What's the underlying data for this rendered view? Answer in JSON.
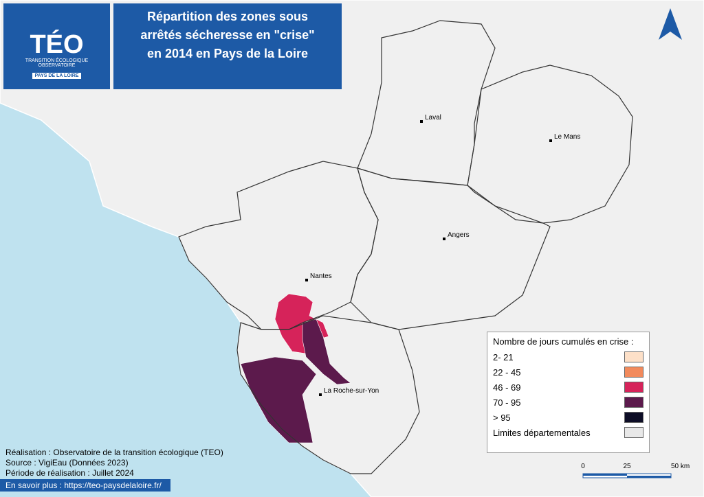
{
  "logo": {
    "name": "TÉO",
    "line1": "TRANSITION ÉCOLOGIQUE",
    "line2": "OBSERVATOIRE",
    "region": "PAYS DE LA LOIRE"
  },
  "title": "Répartition des zones sous arrêtés sécheresse en \"crise\" en 2014 en Pays de la Loire",
  "cities": [
    "Laval",
    "Le Mans",
    "Angers",
    "Nantes",
    "La Roche-sur-Yon"
  ],
  "legend": {
    "title": "Nombre de jours cumulés en crise :",
    "items": [
      {
        "label": "2- 21",
        "color": "#fde0c8"
      },
      {
        "label": "22 - 45",
        "color": "#f28a5c"
      },
      {
        "label": "46 - 69",
        "color": "#d6235a"
      },
      {
        "label": "70 - 95",
        "color": "#5c1a4c"
      },
      {
        "label": "> 95",
        "color": "#0d0d26"
      },
      {
        "label": "Limites départementales",
        "color": "#e8e8e8"
      }
    ]
  },
  "credits": [
    "Réalisation : Observatoire de la transition écologique (TEO)",
    "Source : VigiEau (Données 2023)",
    "Période de réalisation : Juillet 2024"
  ],
  "link": "En savoir plus : https://teo-paysdelaloire.fr/",
  "scale": [
    "0",
    "25",
    "50 km"
  ]
}
